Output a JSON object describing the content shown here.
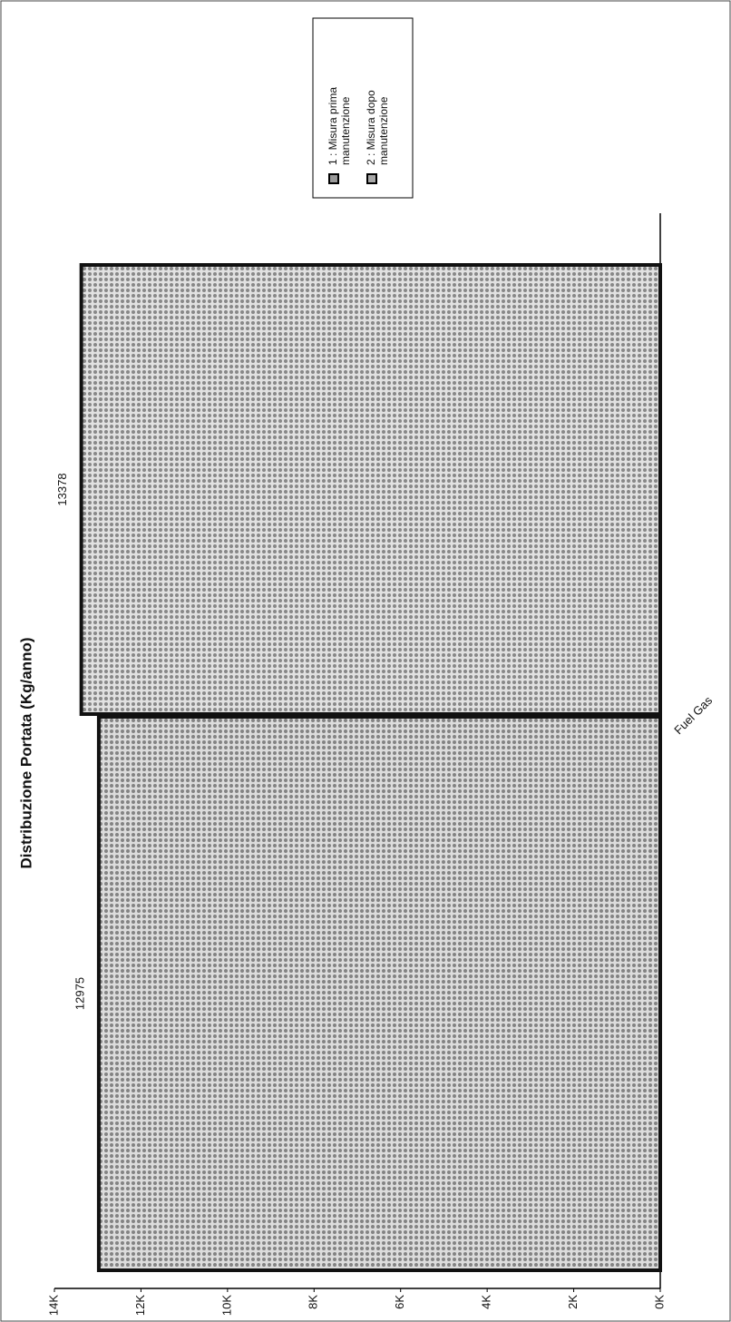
{
  "chart_data": {
    "type": "bar",
    "title": "Distribuzione Portata (Kg/anno)",
    "categories": [
      "Fuel Gas"
    ],
    "series": [
      {
        "name": "1 : Misura prima manutenzione",
        "color": "#9a9a9a",
        "values": [
          12975
        ]
      },
      {
        "name": "2 : Misura dopo manutenzione",
        "color": "#a8a8a8",
        "values": [
          13378
        ]
      }
    ],
    "ylim": [
      0,
      14000
    ],
    "yticks": [
      {
        "value": 0,
        "label": "0K"
      },
      {
        "value": 2000,
        "label": "2K"
      },
      {
        "value": 4000,
        "label": "4K"
      },
      {
        "value": 6000,
        "label": "6K"
      },
      {
        "value": 8000,
        "label": "8K"
      },
      {
        "value": 10000,
        "label": "10K"
      },
      {
        "value": 12000,
        "label": "12K"
      },
      {
        "value": 14000,
        "label": "14K"
      }
    ],
    "grid": false,
    "legend": "top-right"
  }
}
